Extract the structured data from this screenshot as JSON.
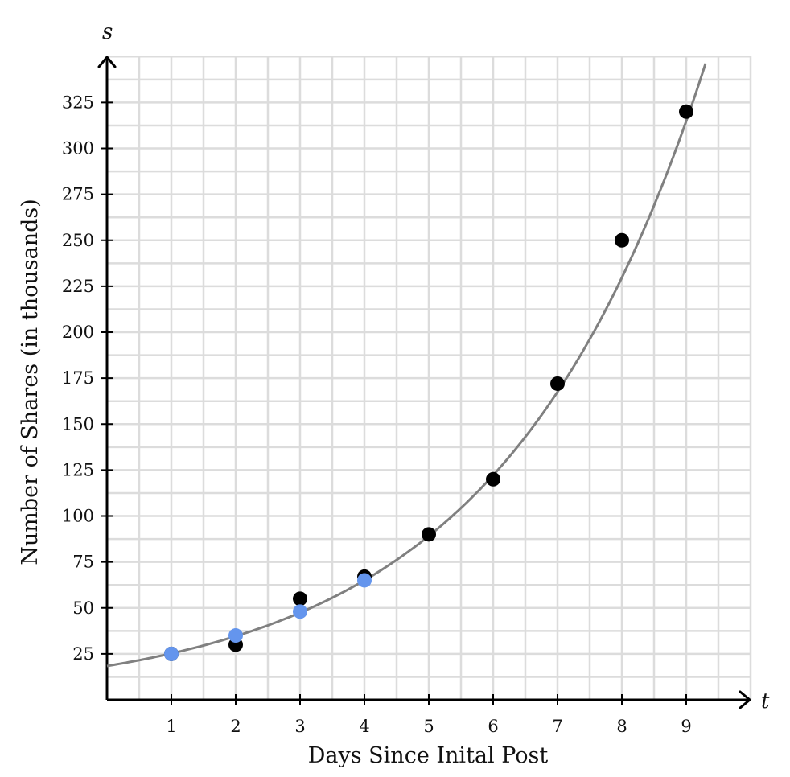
{
  "chart_data": {
    "type": "scatter",
    "xlabel": "Days Since Inital Post",
    "ylabel": "Number of Shares (in thousands)",
    "x_var": "t",
    "y_var": "s",
    "xlim": [
      0,
      10
    ],
    "ylim": [
      0,
      350
    ],
    "x_ticks": [
      "1",
      "2",
      "3",
      "4",
      "5",
      "6",
      "7",
      "8",
      "9"
    ],
    "y_ticks": [
      "25",
      "50",
      "75",
      "100",
      "125",
      "150",
      "175",
      "200",
      "225",
      "250",
      "275",
      "300",
      "325"
    ],
    "grid": true,
    "series": [
      {
        "color": "#000000",
        "points": [
          [
            1,
            25
          ],
          [
            2,
            30
          ],
          [
            3,
            55
          ],
          [
            4,
            67
          ],
          [
            5,
            90
          ],
          [
            6,
            120
          ],
          [
            7,
            172
          ],
          [
            8,
            250
          ],
          [
            9,
            320
          ]
        ]
      },
      {
        "color": "#6495ED",
        "points": [
          [
            1,
            25
          ],
          [
            2,
            35
          ],
          [
            3,
            48
          ],
          [
            4,
            65
          ]
        ]
      }
    ],
    "curve": {
      "type": "exponential",
      "a": 18.4,
      "b": 1.371,
      "color": "#808080"
    }
  }
}
